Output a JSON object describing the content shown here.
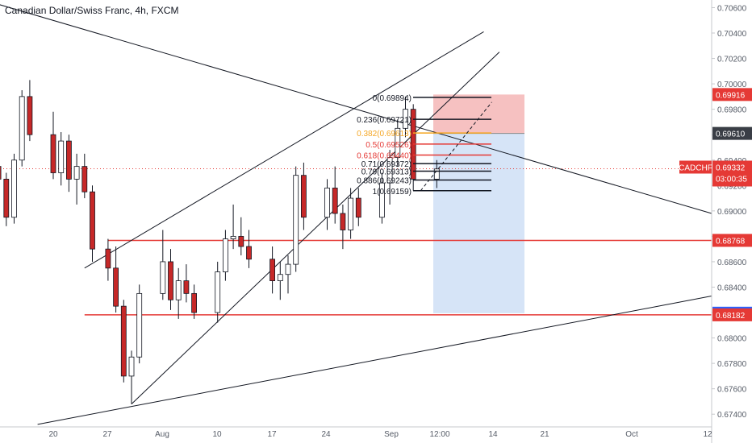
{
  "header": {
    "symbol_name": "Canadian Dollar/Swiss Franc",
    "interval": "4h",
    "exchange": "FXCM"
  },
  "colors": {
    "up": "#ffffff",
    "down": "#c62828",
    "wick": "#131722",
    "hline": "#e53935",
    "stop_zone": "#f6c1c1",
    "target_zone": "#d6e4f7",
    "axis_text": "#555b66",
    "fib_red": "#e53935",
    "fib_orange": "#f5a623",
    "fib_black": "#131722",
    "label_price": "#e53935",
    "label_dark": "#3a3e46",
    "label_blue": "#2962ff"
  },
  "chart_data": {
    "type": "candlestick",
    "title": "Canadian Dollar/Swiss Franc, 4h, FXCM",
    "ylim": [
      0.673,
      0.7066
    ],
    "y_ticks": [
      "0.67400",
      "0.67600",
      "0.67800",
      "0.68000",
      "0.68200",
      "0.68400",
      "0.68600",
      "0.68800",
      "0.69000",
      "0.69200",
      "0.69400",
      "0.69600",
      "0.69800",
      "0.70000",
      "0.70200",
      "0.70400",
      "0.70600"
    ],
    "x_ticks": [
      "20",
      "27",
      "Aug",
      "10",
      "17",
      "24",
      "Sep",
      "12:00",
      "14",
      "21",
      "Oct",
      "12"
    ],
    "price_labels": [
      {
        "name": "stop-label",
        "value": "0.69916",
        "style": "red"
      },
      {
        "name": "entry-label",
        "value": "0.69610",
        "style": "dark"
      },
      {
        "name": "symbol-label",
        "value": "CADCHF",
        "price": "0.69332",
        "timer": "03:00:35",
        "style": "red"
      },
      {
        "name": "resistance-label",
        "value": "0.68768",
        "style": "red"
      },
      {
        "name": "target-label",
        "value": "0.68195",
        "style": "blue"
      },
      {
        "name": "support-label",
        "value": "0.68182",
        "style": "red"
      }
    ],
    "horizontal_lines": [
      {
        "name": "resistance-line",
        "price": 0.68768,
        "from": "27 Jul",
        "to": "end"
      },
      {
        "name": "support-line",
        "price": 0.68182,
        "from": "24 Jul",
        "to": "end"
      }
    ],
    "current_price": 0.69332,
    "fibonacci": {
      "high": 0.69894,
      "low": 0.69159,
      "levels": [
        {
          "label": "0(0.69894)",
          "ratio": 0,
          "price": 0.69894,
          "color": "black"
        },
        {
          "label": "0.236(0.69721)",
          "ratio": 0.236,
          "price": 0.69721,
          "color": "black"
        },
        {
          "label": "0.382(0.69613)",
          "ratio": 0.382,
          "price": 0.69613,
          "color": "orange"
        },
        {
          "label": "0.5(0.69526)",
          "ratio": 0.5,
          "price": 0.69526,
          "color": "red"
        },
        {
          "label": "0.618(0.69440)",
          "ratio": 0.618,
          "price": 0.6944,
          "color": "red"
        },
        {
          "label": "0.71(0.69372)",
          "ratio": 0.71,
          "price": 0.69372,
          "color": "black"
        },
        {
          "label": "0.79(0.69313)",
          "ratio": 0.79,
          "price": 0.69313,
          "color": "black"
        },
        {
          "label": "0.886(0.69243)",
          "ratio": 0.886,
          "price": 0.69243,
          "color": "black"
        },
        {
          "label": "1(0.69159)",
          "ratio": 1,
          "price": 0.69159,
          "color": "black"
        }
      ]
    },
    "position": {
      "type": "short",
      "entry": 0.6961,
      "stop": 0.69916,
      "target": 0.68195
    },
    "trendlines": [
      {
        "name": "descending-line",
        "from": {
          "t": "10 Jul",
          "p": 0.7068
        },
        "to": {
          "t": "end",
          "p": 0.6898
        }
      },
      {
        "name": "wedge-upper-line",
        "from": {
          "t": "24 Jul",
          "p": 0.6855
        },
        "to": {
          "t": "13 Sep",
          "p": 0.7041
        }
      },
      {
        "name": "wedge-lower-line",
        "from": {
          "t": "30 Jul",
          "p": 0.6748
        },
        "to": {
          "t": "15 Sep",
          "p": 0.7025
        }
      },
      {
        "name": "long-support-line",
        "from": {
          "t": "18 Jul",
          "p": 0.6732
        },
        "to": {
          "t": "end",
          "p": 0.6833
        }
      }
    ],
    "candles_ohlc": [
      {
        "t": "13 Jul",
        "o": 0.6935,
        "h": 0.6945,
        "l": 0.692,
        "c": 0.6925
      },
      {
        "t": "14 Jul",
        "o": 0.6925,
        "h": 0.693,
        "l": 0.6888,
        "c": 0.6895
      },
      {
        "t": "15 Jul",
        "o": 0.6895,
        "h": 0.6945,
        "l": 0.689,
        "c": 0.694
      },
      {
        "t": "16 Jul",
        "o": 0.694,
        "h": 0.6995,
        "l": 0.6935,
        "c": 0.699
      },
      {
        "t": "17 Jul",
        "o": 0.699,
        "h": 0.7003,
        "l": 0.6955,
        "c": 0.696
      },
      {
        "t": "20 Jul",
        "o": 0.696,
        "h": 0.6978,
        "l": 0.6925,
        "c": 0.693
      },
      {
        "t": "21 Jul",
        "o": 0.693,
        "h": 0.6962,
        "l": 0.692,
        "c": 0.6955
      },
      {
        "t": "22 Jul",
        "o": 0.6955,
        "h": 0.696,
        "l": 0.6915,
        "c": 0.6925
      },
      {
        "t": "23 Jul",
        "o": 0.6925,
        "h": 0.6945,
        "l": 0.6905,
        "c": 0.6935
      },
      {
        "t": "24 Jul",
        "o": 0.6935,
        "h": 0.6945,
        "l": 0.691,
        "c": 0.6915
      },
      {
        "t": "25 Jul",
        "o": 0.6915,
        "h": 0.692,
        "l": 0.686,
        "c": 0.687
      },
      {
        "t": "27 Jul",
        "o": 0.687,
        "h": 0.6878,
        "l": 0.6845,
        "c": 0.6855
      },
      {
        "t": "28 Jul",
        "o": 0.6855,
        "h": 0.6872,
        "l": 0.682,
        "c": 0.6825
      },
      {
        "t": "29 Jul",
        "o": 0.6825,
        "h": 0.683,
        "l": 0.6765,
        "c": 0.677
      },
      {
        "t": "30 Jul",
        "o": 0.677,
        "h": 0.679,
        "l": 0.6748,
        "c": 0.6785
      },
      {
        "t": "31 Jul",
        "o": 0.6785,
        "h": 0.6842,
        "l": 0.678,
        "c": 0.6835
      },
      {
        "t": "3 Aug",
        "o": 0.6835,
        "h": 0.6885,
        "l": 0.683,
        "c": 0.686
      },
      {
        "t": "4 Aug",
        "o": 0.686,
        "h": 0.687,
        "l": 0.6822,
        "c": 0.683
      },
      {
        "t": "5 Aug",
        "o": 0.683,
        "h": 0.6855,
        "l": 0.6815,
        "c": 0.6845
      },
      {
        "t": "6 Aug",
        "o": 0.6845,
        "h": 0.6858,
        "l": 0.6828,
        "c": 0.6835
      },
      {
        "t": "7 Aug",
        "o": 0.6835,
        "h": 0.6842,
        "l": 0.6815,
        "c": 0.682
      },
      {
        "t": "10 Aug",
        "o": 0.682,
        "h": 0.686,
        "l": 0.6812,
        "c": 0.6852
      },
      {
        "t": "11 Aug",
        "o": 0.6852,
        "h": 0.6885,
        "l": 0.6845,
        "c": 0.6878
      },
      {
        "t": "12 Aug",
        "o": 0.6878,
        "h": 0.6905,
        "l": 0.687,
        "c": 0.688
      },
      {
        "t": "13 Aug",
        "o": 0.688,
        "h": 0.6895,
        "l": 0.6865,
        "c": 0.6872
      },
      {
        "t": "14 Aug",
        "o": 0.6872,
        "h": 0.6885,
        "l": 0.6855,
        "c": 0.6862
      },
      {
        "t": "17 Aug",
        "o": 0.6862,
        "h": 0.6872,
        "l": 0.6835,
        "c": 0.6845
      },
      {
        "t": "18 Aug",
        "o": 0.6845,
        "h": 0.686,
        "l": 0.683,
        "c": 0.685
      },
      {
        "t": "19 Aug",
        "o": 0.685,
        "h": 0.6865,
        "l": 0.6835,
        "c": 0.6858
      },
      {
        "t": "20 Aug",
        "o": 0.6858,
        "h": 0.6935,
        "l": 0.6852,
        "c": 0.6928
      },
      {
        "t": "21 Aug",
        "o": 0.6928,
        "h": 0.6938,
        "l": 0.6885,
        "c": 0.6895
      },
      {
        "t": "24 Aug",
        "o": 0.6895,
        "h": 0.6925,
        "l": 0.6885,
        "c": 0.6918
      },
      {
        "t": "25 Aug",
        "o": 0.6918,
        "h": 0.6935,
        "l": 0.689,
        "c": 0.6898
      },
      {
        "t": "26 Aug",
        "o": 0.6898,
        "h": 0.6905,
        "l": 0.687,
        "c": 0.6885
      },
      {
        "t": "27 Aug",
        "o": 0.6885,
        "h": 0.6918,
        "l": 0.6878,
        "c": 0.691
      },
      {
        "t": "28 Aug",
        "o": 0.691,
        "h": 0.6918,
        "l": 0.6888,
        "c": 0.6895
      },
      {
        "t": "31 Aug",
        "o": 0.6895,
        "h": 0.693,
        "l": 0.689,
        "c": 0.6922
      },
      {
        "t": "1 Sep",
        "o": 0.6922,
        "h": 0.6948,
        "l": 0.6905,
        "c": 0.6942
      },
      {
        "t": "2 Sep",
        "o": 0.6942,
        "h": 0.6972,
        "l": 0.6935,
        "c": 0.6965
      },
      {
        "t": "3 Sep",
        "o": 0.6965,
        "h": 0.699,
        "l": 0.6958,
        "c": 0.698
      },
      {
        "t": "4 Sep",
        "o": 0.698,
        "h": 0.6984,
        "l": 0.6916,
        "c": 0.6925
      },
      {
        "t": "7 Sep",
        "o": 0.6925,
        "h": 0.694,
        "l": 0.6918,
        "c": 0.6933
      }
    ]
  }
}
